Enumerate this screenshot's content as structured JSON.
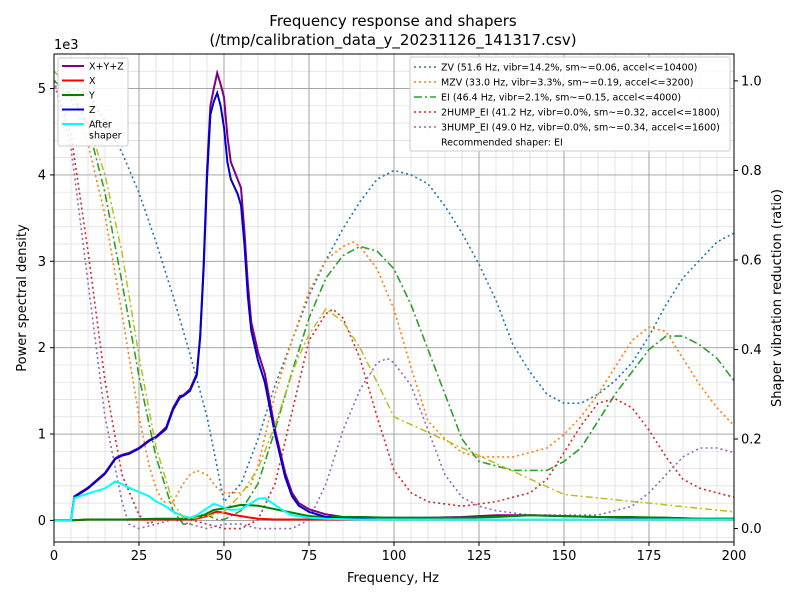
{
  "chart_data": {
    "type": "line",
    "title": "Frequency response and shapers",
    "subtitle": "(/tmp/calibration_data_y_20231126_141317.csv)",
    "xlabel": "Frequency, Hz",
    "ylabel": "Power spectral density",
    "y2label": "Shaper vibration reduction (ratio)",
    "y_scale_label": "1e3",
    "xlim": [
      0,
      200
    ],
    "ylim": [
      -0.25,
      5.4
    ],
    "y2lim": [
      -0.03,
      1.06
    ],
    "x_ticks": [
      0,
      25,
      50,
      75,
      100,
      125,
      150,
      175,
      200
    ],
    "x_tick_labels": [
      "0",
      "25",
      "50",
      "75",
      "100",
      "125",
      "150",
      "175",
      "200"
    ],
    "y_ticks": [
      0,
      1,
      2,
      3,
      4,
      5
    ],
    "y_tick_labels": [
      "0",
      "1",
      "2",
      "3",
      "4",
      "5"
    ],
    "y2_ticks": [
      0,
      0.2,
      0.4,
      0.6,
      0.8,
      1.0
    ],
    "y2_tick_labels": [
      "0.0",
      "0.2",
      "0.4",
      "0.6",
      "0.8",
      "1.0"
    ],
    "grid": true,
    "legend_left_placement": "top-left",
    "legend_right_placement": "top-right",
    "psd_series": [
      {
        "name": "X+Y+Z",
        "color": "#800080",
        "width": 2,
        "x": [
          0,
          5,
          6,
          10,
          15,
          18,
          20,
          22,
          25,
          28,
          30,
          33,
          35,
          37,
          38,
          40,
          42,
          43,
          44,
          45,
          46,
          47,
          48,
          49,
          50,
          51,
          52,
          54,
          55,
          56,
          57,
          58,
          60,
          62,
          65,
          68,
          70,
          72,
          75,
          80,
          85,
          90,
          95,
          100,
          110,
          120,
          130,
          140,
          150,
          160,
          170,
          180,
          190,
          200
        ],
        "y": [
          0,
          0,
          0.28,
          0.38,
          0.55,
          0.72,
          0.76,
          0.78,
          0.84,
          0.93,
          0.97,
          1.08,
          1.3,
          1.44,
          1.45,
          1.52,
          1.7,
          2.15,
          2.95,
          4.05,
          4.8,
          5.0,
          5.18,
          5.05,
          4.9,
          4.45,
          4.15,
          3.95,
          3.85,
          3.35,
          2.75,
          2.3,
          1.95,
          1.7,
          1.05,
          0.55,
          0.32,
          0.2,
          0.13,
          0.07,
          0.04,
          0.04,
          0.03,
          0.03,
          0.03,
          0.04,
          0.06,
          0.06,
          0.05,
          0.04,
          0.03,
          0.03,
          0.02,
          0.02
        ]
      },
      {
        "name": "X",
        "color": "#ff0000",
        "width": 2,
        "x": [
          0,
          5,
          10,
          20,
          30,
          40,
          42,
          45,
          47,
          48,
          50,
          52,
          55,
          58,
          60,
          65,
          70,
          80,
          100,
          200
        ],
        "y": [
          0,
          0,
          0.01,
          0.01,
          0.01,
          0.01,
          0.02,
          0.05,
          0.09,
          0.1,
          0.09,
          0.07,
          0.05,
          0.03,
          0.02,
          0.01,
          0.01,
          0.01,
          0.01,
          0.01
        ]
      },
      {
        "name": "Y",
        "color": "#008000",
        "width": 2,
        "x": [
          0,
          5,
          10,
          20,
          30,
          40,
          44,
          47,
          50,
          55,
          60,
          65,
          70,
          75,
          80,
          90,
          100,
          120,
          130,
          140,
          150,
          160,
          170,
          180,
          190,
          200
        ],
        "y": [
          0,
          0,
          0.01,
          0.01,
          0.02,
          0.02,
          0.06,
          0.12,
          0.14,
          0.18,
          0.17,
          0.13,
          0.09,
          0.05,
          0.04,
          0.04,
          0.03,
          0.03,
          0.04,
          0.06,
          0.05,
          0.04,
          0.04,
          0.03,
          0.02,
          0.02
        ]
      },
      {
        "name": "Z",
        "color": "#0000cd",
        "width": 2,
        "x": [
          0,
          5,
          6,
          10,
          15,
          18,
          20,
          22,
          25,
          28,
          30,
          33,
          35,
          37,
          38,
          40,
          42,
          43,
          44,
          45,
          46,
          47,
          48,
          49,
          50,
          51,
          52,
          54,
          55,
          56,
          57,
          58,
          60,
          62,
          65,
          68,
          70,
          72,
          75,
          80,
          85,
          90,
          95,
          100,
          110,
          120,
          130,
          140,
          150,
          160,
          170,
          180,
          190,
          200
        ],
        "y": [
          0,
          0,
          0.27,
          0.37,
          0.54,
          0.71,
          0.75,
          0.77,
          0.83,
          0.92,
          0.96,
          1.06,
          1.28,
          1.42,
          1.44,
          1.5,
          1.68,
          2.12,
          2.9,
          3.95,
          4.7,
          4.85,
          4.95,
          4.8,
          4.55,
          4.15,
          3.95,
          3.78,
          3.65,
          3.2,
          2.6,
          2.2,
          1.85,
          1.6,
          1.0,
          0.5,
          0.28,
          0.17,
          0.1,
          0.04,
          0.02,
          0.02,
          0.01,
          0.01,
          0.01,
          0.01,
          0.01,
          0.01,
          0.01,
          0.01,
          0.01,
          0.01,
          0.01,
          0.01
        ]
      },
      {
        "name": "After\nshaper",
        "color": "#00ffff",
        "width": 2,
        "x": [
          0,
          5,
          6,
          10,
          15,
          18,
          20,
          22,
          25,
          28,
          30,
          33,
          35,
          38,
          40,
          42,
          45,
          47,
          48,
          50,
          52,
          55,
          58,
          60,
          62,
          65,
          68,
          70,
          75,
          80,
          90,
          100,
          150,
          200
        ],
        "y": [
          0,
          0,
          0.26,
          0.31,
          0.37,
          0.45,
          0.42,
          0.38,
          0.33,
          0.28,
          0.22,
          0.16,
          0.1,
          0.05,
          0.03,
          0.06,
          0.14,
          0.19,
          0.18,
          0.15,
          0.12,
          0.13,
          0.2,
          0.25,
          0.26,
          0.18,
          0.1,
          0.06,
          0.03,
          0.02,
          0.01,
          0.01,
          0.01,
          0.01
        ]
      },
      {
        "name": "",
        "color": "#bcbd22",
        "dash": "7 3 2 3",
        "width": 1.5,
        "x": [
          0,
          5,
          10,
          15,
          20,
          25,
          30,
          35,
          38,
          40,
          45,
          50,
          55,
          60,
          62,
          65,
          70,
          72,
          75,
          80,
          85,
          90,
          95,
          100,
          150,
          200
        ],
        "y": [
          5.2,
          5.0,
          4.6,
          4.0,
          3.1,
          1.9,
          0.85,
          0.2,
          0.03,
          0.02,
          0.05,
          0.1,
          0.3,
          0.6,
          0.8,
          1.1,
          1.7,
          1.9,
          2.15,
          2.45,
          2.3,
          2.0,
          1.6,
          1.2,
          0.3,
          0.1
        ]
      }
    ],
    "shaper_series": [
      {
        "name": "ZV (51.6 Hz, vibr=14.2%, sm~=0.06, accel<=10400)",
        "color": "#1f77b4",
        "dash": "2 3",
        "x": [
          0,
          10,
          15,
          20,
          25,
          30,
          35,
          40,
          45,
          50,
          55,
          60,
          65,
          70,
          75,
          80,
          85,
          90,
          95,
          100,
          105,
          110,
          115,
          120,
          125,
          130,
          135,
          140,
          145,
          150,
          155,
          160,
          165,
          170,
          175,
          180,
          185,
          190,
          195,
          200
        ],
        "y": [
          1.0,
          0.97,
          0.91,
          0.84,
          0.75,
          0.64,
          0.52,
          0.39,
          0.25,
          0.06,
          0.1,
          0.2,
          0.32,
          0.42,
          0.52,
          0.6,
          0.67,
          0.73,
          0.78,
          0.8,
          0.79,
          0.77,
          0.72,
          0.66,
          0.59,
          0.51,
          0.41,
          0.35,
          0.3,
          0.28,
          0.28,
          0.3,
          0.33,
          0.37,
          0.43,
          0.5,
          0.56,
          0.6,
          0.64,
          0.66
        ]
      },
      {
        "name": "MZV (33.0 Hz, vibr=3.3%, sm~=0.19, accel<=3200)",
        "color": "#ff7f0e",
        "dash": "2 3",
        "x": [
          0,
          5,
          10,
          15,
          20,
          25,
          28,
          30,
          32,
          35,
          38,
          40,
          42,
          45,
          48,
          50,
          52,
          55,
          58,
          60,
          65,
          70,
          75,
          80,
          85,
          88,
          90,
          95,
          100,
          105,
          110,
          115,
          120,
          125,
          130,
          135,
          140,
          145,
          150,
          155,
          160,
          165,
          170,
          175,
          180,
          185,
          190,
          195,
          200
        ],
        "y": [
          1.0,
          0.96,
          0.86,
          0.7,
          0.48,
          0.25,
          0.14,
          0.09,
          0.06,
          0.06,
          0.1,
          0.12,
          0.13,
          0.12,
          0.09,
          0.08,
          0.08,
          0.08,
          0.1,
          0.14,
          0.3,
          0.42,
          0.53,
          0.6,
          0.63,
          0.64,
          0.63,
          0.58,
          0.49,
          0.36,
          0.24,
          0.2,
          0.17,
          0.16,
          0.16,
          0.16,
          0.17,
          0.18,
          0.21,
          0.25,
          0.3,
          0.36,
          0.42,
          0.45,
          0.44,
          0.38,
          0.32,
          0.27,
          0.23
        ]
      },
      {
        "name": "EI (46.4 Hz, vibr=2.1%, sm~=0.15, accel<=4000)",
        "color": "#2ca02c",
        "dash": "8 3 2 3",
        "x": [
          0,
          5,
          10,
          15,
          20,
          25,
          30,
          35,
          38,
          40,
          42,
          45,
          48,
          50,
          55,
          60,
          65,
          70,
          75,
          80,
          85,
          90,
          95,
          100,
          105,
          110,
          115,
          120,
          125,
          130,
          135,
          140,
          145,
          150,
          155,
          160,
          165,
          170,
          175,
          180,
          185,
          190,
          195,
          200
        ],
        "y": [
          1.0,
          0.97,
          0.9,
          0.75,
          0.55,
          0.34,
          0.16,
          0.04,
          0.01,
          0.01,
          0.03,
          0.03,
          0.02,
          0.02,
          0.04,
          0.1,
          0.22,
          0.35,
          0.47,
          0.56,
          0.61,
          0.63,
          0.62,
          0.58,
          0.5,
          0.4,
          0.3,
          0.2,
          0.15,
          0.14,
          0.13,
          0.13,
          0.13,
          0.15,
          0.18,
          0.24,
          0.3,
          0.35,
          0.4,
          0.43,
          0.43,
          0.41,
          0.38,
          0.33
        ]
      },
      {
        "name": "2HUMP_EI (41.2 Hz, vibr=0.0%, sm~=0.32, accel<=1800)",
        "color": "#d62728",
        "dash": "2 3",
        "x": [
          0,
          5,
          10,
          15,
          20,
          25,
          28,
          30,
          35,
          40,
          45,
          50,
          55,
          60,
          65,
          70,
          75,
          80,
          82,
          85,
          90,
          95,
          100,
          105,
          110,
          120,
          130,
          135,
          140,
          145,
          150,
          155,
          160,
          165,
          170,
          175,
          180,
          185,
          190,
          195,
          200
        ],
        "y": [
          1.0,
          0.88,
          0.62,
          0.33,
          0.12,
          0.03,
          0.01,
          0.02,
          0.02,
          0.02,
          0.01,
          0.0,
          0.0,
          0.02,
          0.1,
          0.26,
          0.42,
          0.48,
          0.49,
          0.47,
          0.38,
          0.25,
          0.13,
          0.08,
          0.06,
          0.05,
          0.06,
          0.07,
          0.08,
          0.11,
          0.17,
          0.23,
          0.28,
          0.29,
          0.27,
          0.22,
          0.16,
          0.11,
          0.09,
          0.08,
          0.07
        ]
      },
      {
        "name": "3HUMP_EI (49.0 Hz, vibr=0.0%, sm~=0.34, accel<=1600)",
        "color": "#9467bd",
        "dash": "2 3",
        "x": [
          0,
          5,
          10,
          15,
          20,
          22,
          25,
          30,
          35,
          40,
          45,
          50,
          55,
          60,
          65,
          70,
          75,
          80,
          85,
          90,
          95,
          98,
          100,
          105,
          110,
          115,
          120,
          125,
          130,
          140,
          150,
          160,
          170,
          175,
          180,
          185,
          190,
          195,
          200
        ],
        "y": [
          1.0,
          0.85,
          0.55,
          0.25,
          0.06,
          0.01,
          0.0,
          0.01,
          0.02,
          0.01,
          0.0,
          0.01,
          0.01,
          0.0,
          0.0,
          0.0,
          0.02,
          0.1,
          0.22,
          0.31,
          0.37,
          0.38,
          0.37,
          0.32,
          0.22,
          0.12,
          0.07,
          0.05,
          0.04,
          0.03,
          0.03,
          0.03,
          0.05,
          0.08,
          0.12,
          0.16,
          0.18,
          0.18,
          0.17
        ]
      }
    ],
    "recommended_label": "Recommended shaper: EI"
  }
}
